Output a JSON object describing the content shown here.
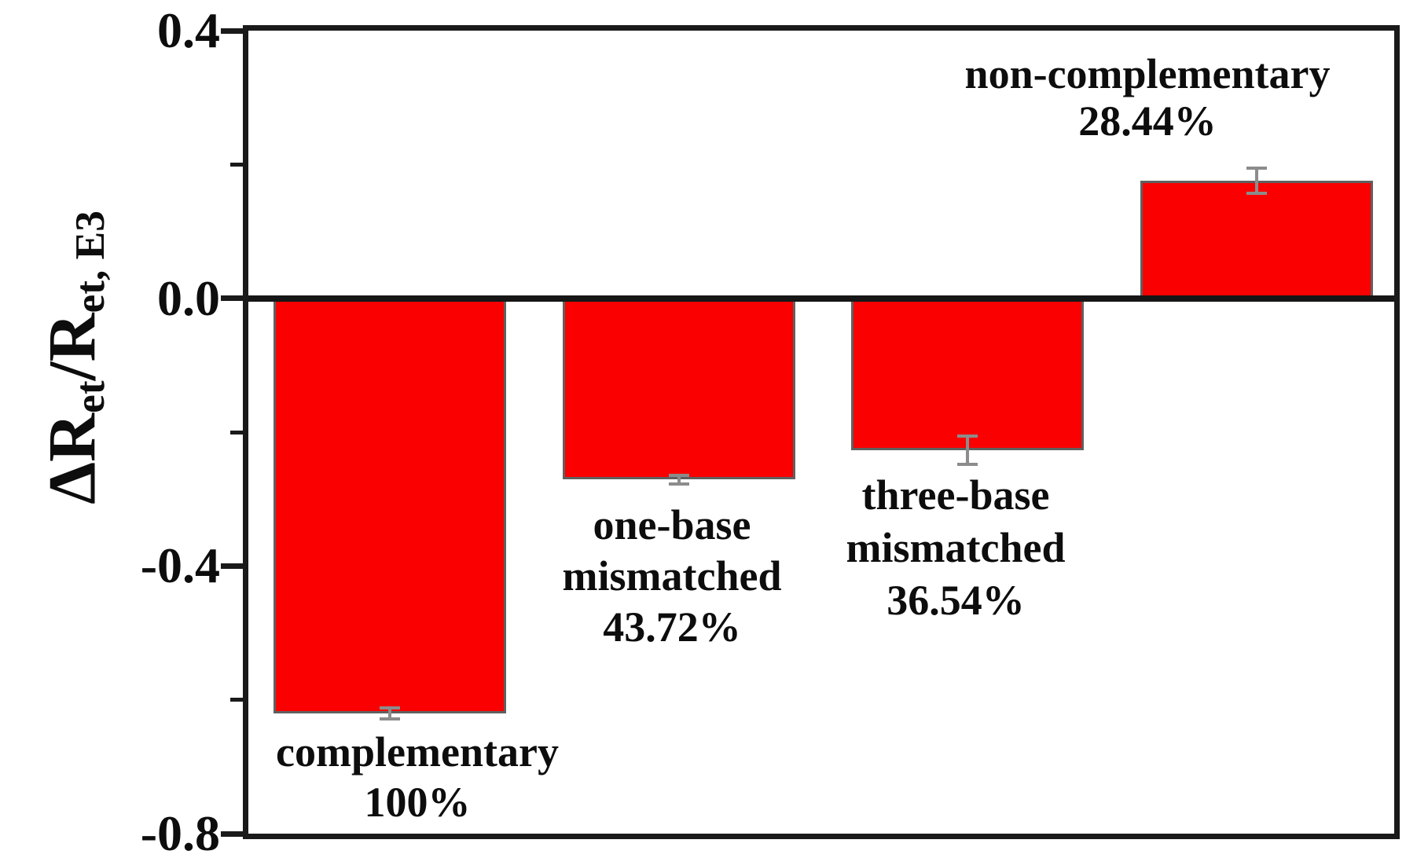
{
  "chart_data": {
    "type": "bar",
    "title": "",
    "xlabel": "",
    "ylabel": "ΔRet/Ret, E3",
    "ylabel_parts": {
      "p1": "ΔR",
      "p1_sub": "et",
      "p2": "/R",
      "p2_sub": "et, E3"
    },
    "ylim": [
      -0.8,
      0.4
    ],
    "ytick_major_values": [
      0.4,
      0.0,
      -0.4,
      -0.8
    ],
    "ytick_labels": [
      "0.4",
      "0.0",
      "-0.4",
      "-0.8"
    ],
    "ytick_minor_values": [
      0.2,
      -0.2,
      -0.6
    ],
    "grid": false,
    "legend": "none",
    "categories": [
      "complementary",
      "one-base mismatched",
      "three-base mismatched",
      "non-complementary"
    ],
    "values": [
      -0.62,
      -0.271,
      -0.227,
      0.176
    ],
    "errors": [
      0.008,
      0.007,
      0.021,
      0.019
    ],
    "bar_color": "#fa0000",
    "bar_edge_color": "#606060",
    "error_bar_color": "#8c8c8c",
    "axis_color": "#1a1a1a",
    "background_color": "#ffffff",
    "bars": [
      {
        "name": "complementary",
        "value": -0.62,
        "error": 0.008,
        "percent_label": "100%",
        "lines": [
          "complementary",
          "100%"
        ]
      },
      {
        "name": "one-base mismatched",
        "value": -0.271,
        "error": 0.007,
        "percent_label": "43.72%",
        "lines": [
          "one-base",
          "mismatched",
          "43.72%"
        ]
      },
      {
        "name": "three-base mismatched",
        "value": -0.227,
        "error": 0.021,
        "percent_label": "36.54%",
        "lines": [
          "three-base",
          "mismatched",
          "36.54%"
        ]
      },
      {
        "name": "non-complementary",
        "value": 0.176,
        "error": 0.019,
        "percent_label": "28.44%",
        "lines": [
          "non-complementary",
          "28.44%"
        ]
      }
    ]
  }
}
